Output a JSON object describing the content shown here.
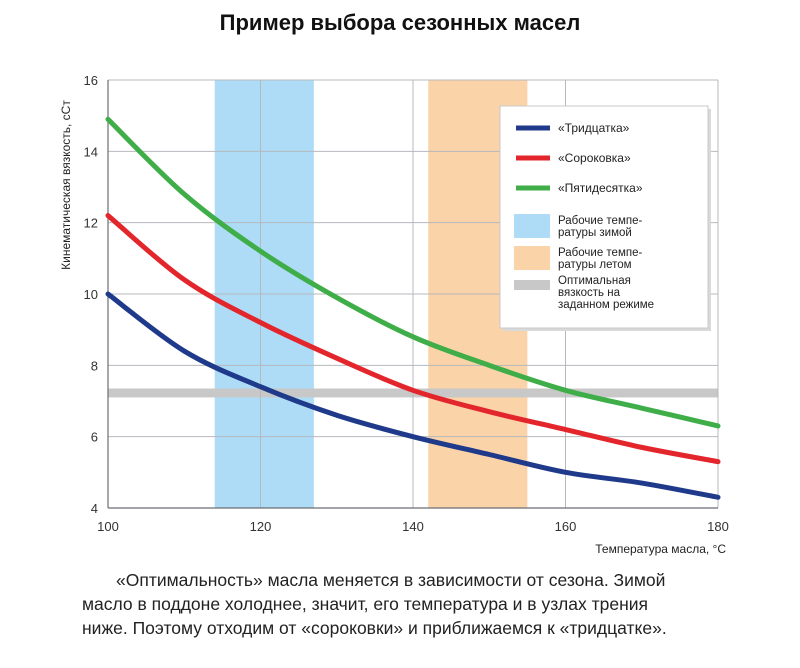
{
  "chart_data": {
    "type": "line",
    "title": "Пример выбора сезонных масел",
    "xlabel": "Температура масла, °С",
    "ylabel": "Кинематическая вязкость, сСт",
    "xlim": [
      100,
      180
    ],
    "ylim": [
      4,
      16
    ],
    "xticks": [
      100,
      120,
      140,
      160,
      180
    ],
    "yticks": [
      4,
      6,
      8,
      10,
      12,
      14,
      16
    ],
    "grid": true,
    "legend_position": "top-right",
    "series": [
      {
        "name": "«Тридцатка»",
        "color": "#1f3a8a",
        "x": [
          100,
          110,
          120,
          130,
          140,
          150,
          160,
          170,
          180
        ],
        "y": [
          10.0,
          8.4,
          7.4,
          6.6,
          6.0,
          5.5,
          5.0,
          4.7,
          4.3
        ]
      },
      {
        "name": "«Сороковка»",
        "color": "#e3262b",
        "x": [
          100,
          110,
          120,
          130,
          140,
          150,
          160,
          170,
          180
        ],
        "y": [
          12.2,
          10.4,
          9.2,
          8.2,
          7.3,
          6.7,
          6.2,
          5.7,
          5.3
        ]
      },
      {
        "name": "«Пятидесятка»",
        "color": "#3fae49",
        "x": [
          100,
          110,
          120,
          130,
          140,
          150,
          160,
          170,
          180
        ],
        "y": [
          14.9,
          12.8,
          11.2,
          9.9,
          8.8,
          8.0,
          7.3,
          6.8,
          6.3
        ]
      }
    ],
    "bands": [
      {
        "name": "Рабочие темпе-\nратуры зимой",
        "label_lines": [
          "Рабочие темпе-",
          "ратуры зимой"
        ],
        "orientation": "vertical",
        "range": [
          114,
          127
        ],
        "color": "#aedcf7"
      },
      {
        "name": "Рабочие темпе-\nратуры летом",
        "label_lines": [
          "Рабочие темпе-",
          "ратуры летом"
        ],
        "orientation": "vertical",
        "range": [
          142,
          155
        ],
        "color": "#fbd3a8"
      },
      {
        "name": "Оптимальная\nвязкость на\nзаданном режиме",
        "label_lines": [
          "Оптимальная",
          "вязкость на",
          "заданном режиме"
        ],
        "orientation": "horizontal",
        "range": [
          7.1,
          7.35
        ],
        "color": "#c8c8c8"
      }
    ]
  },
  "caption": {
    "line1": "«Оптимальность» масла меняется в зависимости от сезона. Зимой",
    "line2": "масло в поддоне холоднее, значит, его температура и в узлах трения",
    "line3": "ниже. Поэтому отходим от «сороковки» и приближаемся к «тридцатке»."
  }
}
